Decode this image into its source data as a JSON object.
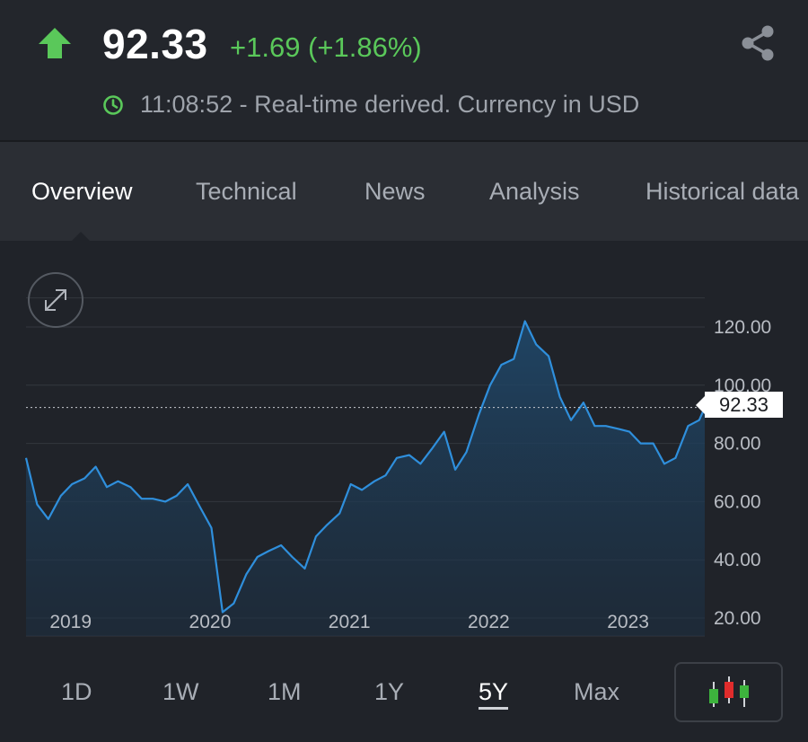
{
  "quote": {
    "price": "92.33",
    "change": "+1.69 (+1.86%)",
    "time_info": "11:08:52 - Real-time derived. Currency in USD",
    "colors": {
      "up": "#5ac85a",
      "line": "#2f8fdc"
    }
  },
  "icons": {
    "direction": "arrow-up-icon",
    "share": "share-icon",
    "clock": "clock-icon",
    "expand": "expand-icon",
    "chart_type": "candlestick-icon"
  },
  "tabs": [
    {
      "label": "Overview",
      "active": true
    },
    {
      "label": "Technical"
    },
    {
      "label": "News"
    },
    {
      "label": "Analysis"
    },
    {
      "label": "Historical data"
    }
  ],
  "ranges": [
    {
      "label": "1D"
    },
    {
      "label": "1W"
    },
    {
      "label": "1M"
    },
    {
      "label": "1Y"
    },
    {
      "label": "5Y",
      "active": true
    },
    {
      "label": "Max"
    }
  ],
  "chart_data": {
    "type": "area",
    "x_ticks": [
      "2019",
      "2020",
      "2021",
      "2022",
      "2023"
    ],
    "y_ticks": [
      "20.00",
      "40.00",
      "60.00",
      "80.00",
      "100.00",
      "120.00"
    ],
    "ylim": [
      15,
      135
    ],
    "xlim": [
      2018.68,
      2023.55
    ],
    "current_value_label": "92.33",
    "current_value": 92.33,
    "grid": true,
    "series": [
      {
        "x": [
          2018.68,
          2018.76,
          2018.84,
          2018.93,
          2019.01,
          2019.1,
          2019.18,
          2019.26,
          2019.34,
          2019.43,
          2019.51,
          2019.59,
          2019.68,
          2019.76,
          2019.84,
          2019.93,
          2020.01,
          2020.09,
          2020.17,
          2020.26,
          2020.34,
          2020.42,
          2020.51,
          2020.59,
          2020.68,
          2020.76,
          2020.84,
          2020.93,
          2021.01,
          2021.09,
          2021.18,
          2021.26,
          2021.34,
          2021.43,
          2021.51,
          2021.59,
          2021.68,
          2021.76,
          2021.84,
          2021.93,
          2022.01,
          2022.09,
          2022.18,
          2022.26,
          2022.34,
          2022.43,
          2022.51,
          2022.59,
          2022.68,
          2022.76,
          2022.84,
          2022.93,
          2023.01,
          2023.09,
          2023.18,
          2023.26,
          2023.34,
          2023.43,
          2023.51,
          2023.55
        ],
        "y": [
          75,
          59,
          54,
          62,
          66,
          68,
          72,
          65,
          67,
          65,
          61,
          61,
          60,
          62,
          66,
          58,
          51,
          22,
          25,
          35,
          41,
          43,
          45,
          41,
          37,
          48,
          52,
          56,
          66,
          64,
          67,
          69,
          75,
          76,
          73,
          78,
          84,
          71,
          77,
          90,
          100,
          107,
          109,
          122,
          114,
          110,
          96,
          88,
          94,
          86,
          86,
          85,
          84,
          80,
          80,
          73,
          75,
          86,
          88,
          92.33
        ]
      }
    ]
  }
}
